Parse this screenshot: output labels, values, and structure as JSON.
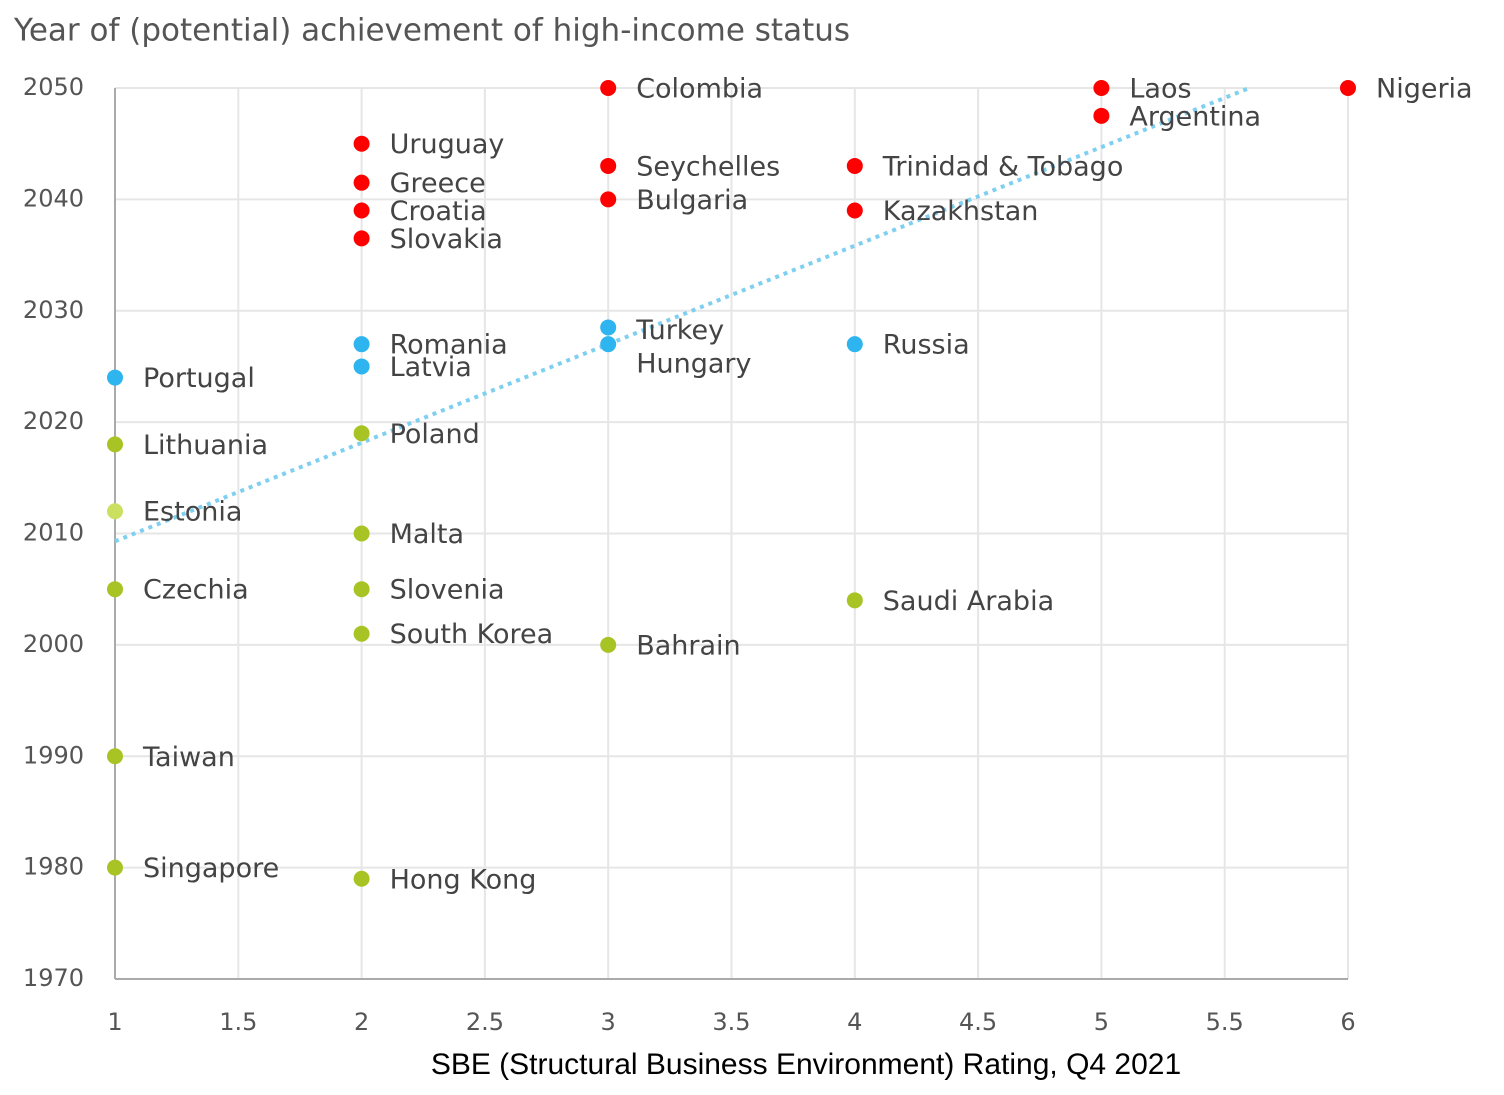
{
  "chart_data": {
    "type": "scatter",
    "title": "Year of (potential) achievement of high-income status",
    "x_label": "SBE (Structural Business Environment) Rating, Q4 2021",
    "xlim": [
      1,
      6
    ],
    "ylim": [
      1970,
      2050
    ],
    "xticks": [
      1,
      1.5,
      2,
      2.5,
      3,
      3.5,
      4,
      4.5,
      5,
      5.5,
      6
    ],
    "yticks": [
      1970,
      1980,
      1990,
      2000,
      2010,
      2020,
      2030,
      2040,
      2050
    ],
    "grid": true,
    "trendline": {
      "color": "#7fd0f0",
      "x": [
        1,
        5.6
      ],
      "y": [
        2009.3,
        2050
      ]
    },
    "points": [
      {
        "label": "Colombia",
        "x": 3,
        "y": 2050,
        "color": "#ff0000"
      },
      {
        "label": "Laos",
        "x": 5,
        "y": 2050,
        "color": "#ff0000"
      },
      {
        "label": "Nigeria",
        "x": 6,
        "y": 2050,
        "color": "#ff0000"
      },
      {
        "label": "Argentina",
        "x": 5,
        "y": 2047.5,
        "color": "#ff0000"
      },
      {
        "label": "Uruguay",
        "x": 2,
        "y": 2045,
        "color": "#ff0000"
      },
      {
        "label": "Seychelles",
        "x": 3,
        "y": 2043,
        "color": "#ff0000"
      },
      {
        "label": "Trinidad & Tobago",
        "x": 4,
        "y": 2043,
        "color": "#ff0000"
      },
      {
        "label": "Greece",
        "x": 2,
        "y": 2041.5,
        "color": "#ff0000"
      },
      {
        "label": "Bulgaria",
        "x": 3,
        "y": 2040,
        "color": "#ff0000"
      },
      {
        "label": "Croatia",
        "x": 2,
        "y": 2039,
        "color": "#ff0000"
      },
      {
        "label": "Kazakhstan",
        "x": 4,
        "y": 2039,
        "color": "#ff0000"
      },
      {
        "label": "Slovakia",
        "x": 2,
        "y": 2036.5,
        "color": "#ff0000"
      },
      {
        "label": "Turkey",
        "x": 3,
        "y": 2028.5,
        "color": "#2eb5f0"
      },
      {
        "label": "Hungary",
        "x": 3,
        "y": 2027,
        "color": "#2eb5f0"
      },
      {
        "label": "Romania",
        "x": 2,
        "y": 2027,
        "color": "#2eb5f0"
      },
      {
        "label": "Russia",
        "x": 4,
        "y": 2027,
        "color": "#2eb5f0"
      },
      {
        "label": "Latvia",
        "x": 2,
        "y": 2025,
        "color": "#2eb5f0"
      },
      {
        "label": "Portugal",
        "x": 1,
        "y": 2024,
        "color": "#2eb5f0"
      },
      {
        "label": "Poland",
        "x": 2,
        "y": 2019,
        "color": "#a8c424"
      },
      {
        "label": "Lithuania",
        "x": 1,
        "y": 2018,
        "color": "#a8c424"
      },
      {
        "label": "Estonia",
        "x": 1,
        "y": 2012,
        "color": "#cbe061"
      },
      {
        "label": "Malta",
        "x": 2,
        "y": 2010,
        "color": "#a8c424"
      },
      {
        "label": "Czechia",
        "x": 1,
        "y": 2005,
        "color": "#a8c424"
      },
      {
        "label": "Slovenia",
        "x": 2,
        "y": 2005,
        "color": "#a8c424"
      },
      {
        "label": "Saudi Arabia",
        "x": 4,
        "y": 2004,
        "color": "#a8c424"
      },
      {
        "label": "South Korea",
        "x": 2,
        "y": 2001,
        "color": "#a8c424"
      },
      {
        "label": "Bahrain",
        "x": 3,
        "y": 2000,
        "color": "#a8c424"
      },
      {
        "label": "Taiwan",
        "x": 1,
        "y": 1990,
        "color": "#a8c424"
      },
      {
        "label": "Singapore",
        "x": 1,
        "y": 1980,
        "color": "#a8c424"
      },
      {
        "label": "Hong Kong",
        "x": 2,
        "y": 1979,
        "color": "#a8c424"
      }
    ]
  }
}
